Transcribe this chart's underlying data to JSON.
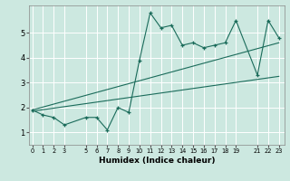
{
  "xlabel": "Humidex (Indice chaleur)",
  "bg_color": "#cce8e0",
  "line_color": "#1a6b5a",
  "grid_color": "#ffffff",
  "x_ticks": [
    0,
    1,
    2,
    3,
    5,
    6,
    7,
    8,
    9,
    10,
    11,
    12,
    13,
    14,
    15,
    16,
    17,
    18,
    19,
    21,
    22,
    23
  ],
  "xlim": [
    -0.3,
    23.5
  ],
  "ylim": [
    0.5,
    6.1
  ],
  "y_ticks": [
    1,
    2,
    3,
    4,
    5
  ],
  "line1_x": [
    0,
    1,
    2,
    3,
    5,
    6,
    7,
    8,
    9,
    10,
    11,
    12,
    13,
    14,
    15,
    16,
    17,
    18,
    19,
    21,
    22,
    23
  ],
  "line1_y": [
    1.9,
    1.7,
    1.6,
    1.3,
    1.6,
    1.6,
    1.1,
    2.0,
    1.8,
    3.9,
    5.8,
    5.2,
    5.3,
    4.5,
    4.6,
    4.4,
    4.5,
    4.6,
    5.5,
    3.3,
    5.5,
    4.8
  ],
  "line2_x": [
    0,
    23
  ],
  "line2_y": [
    1.9,
    4.6
  ],
  "line3_x": [
    0,
    23
  ],
  "line3_y": [
    1.85,
    3.25
  ]
}
